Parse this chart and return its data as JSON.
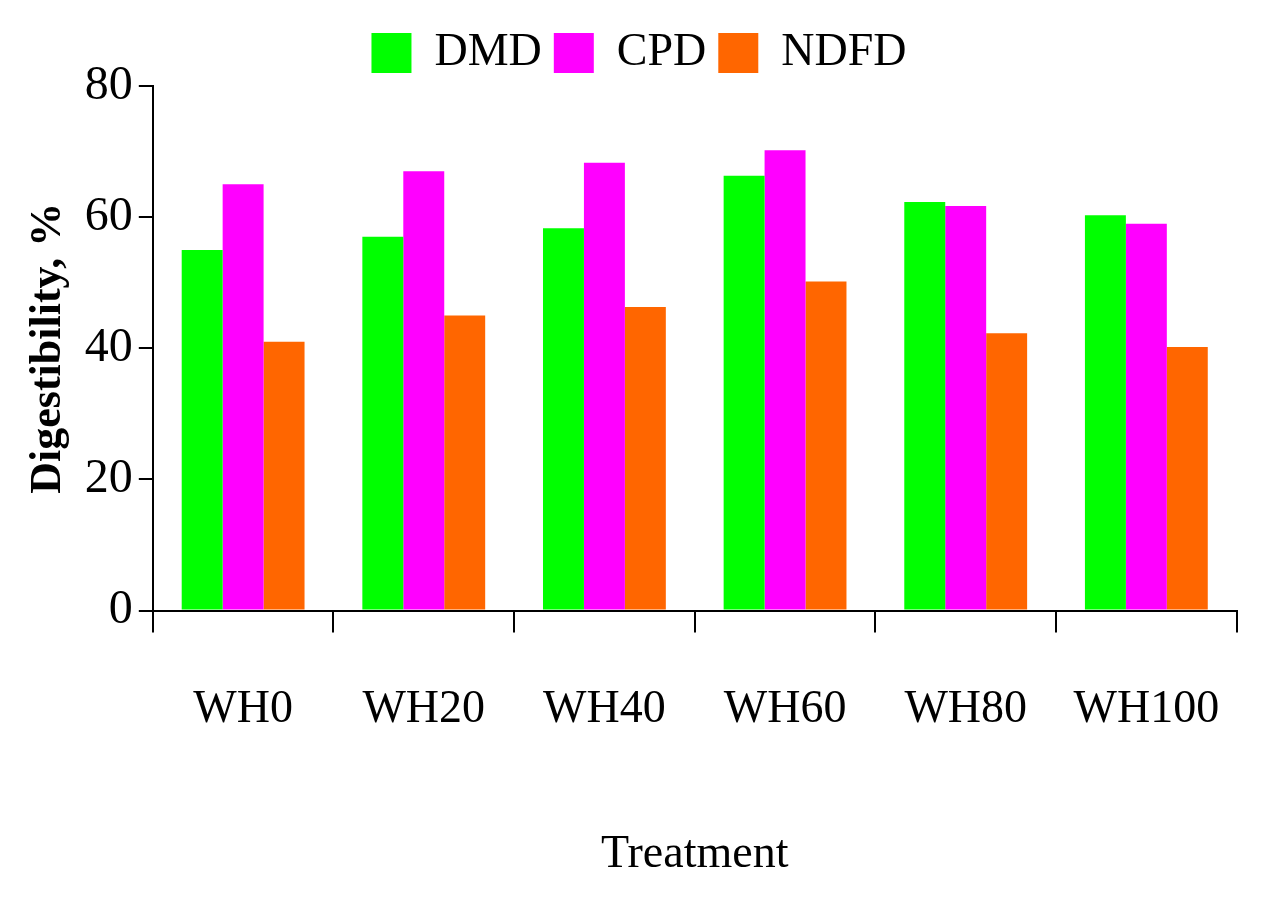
{
  "chart_data": {
    "type": "bar",
    "xlabel": "Treatment",
    "ylabel": "Digestibility, %",
    "categories": [
      "WH0",
      "WH20",
      "WH40",
      "WH60",
      "WH80",
      "WH100"
    ],
    "series": [
      {
        "name": "DMD",
        "color": "#00ff00",
        "values": [
          55,
          57,
          58.3,
          66.3,
          62.3,
          60.3
        ]
      },
      {
        "name": "CPD",
        "color": "#ff00ff",
        "values": [
          65,
          67,
          68.3,
          70.2,
          61.7,
          59
        ]
      },
      {
        "name": "NDFD",
        "color": "#ff6600",
        "values": [
          41,
          45,
          46.3,
          50.2,
          42.3,
          40.2
        ]
      }
    ],
    "ylim": [
      0,
      80
    ],
    "yticks": [
      0,
      20,
      40,
      60,
      80
    ],
    "grid": false,
    "legend": "top"
  }
}
